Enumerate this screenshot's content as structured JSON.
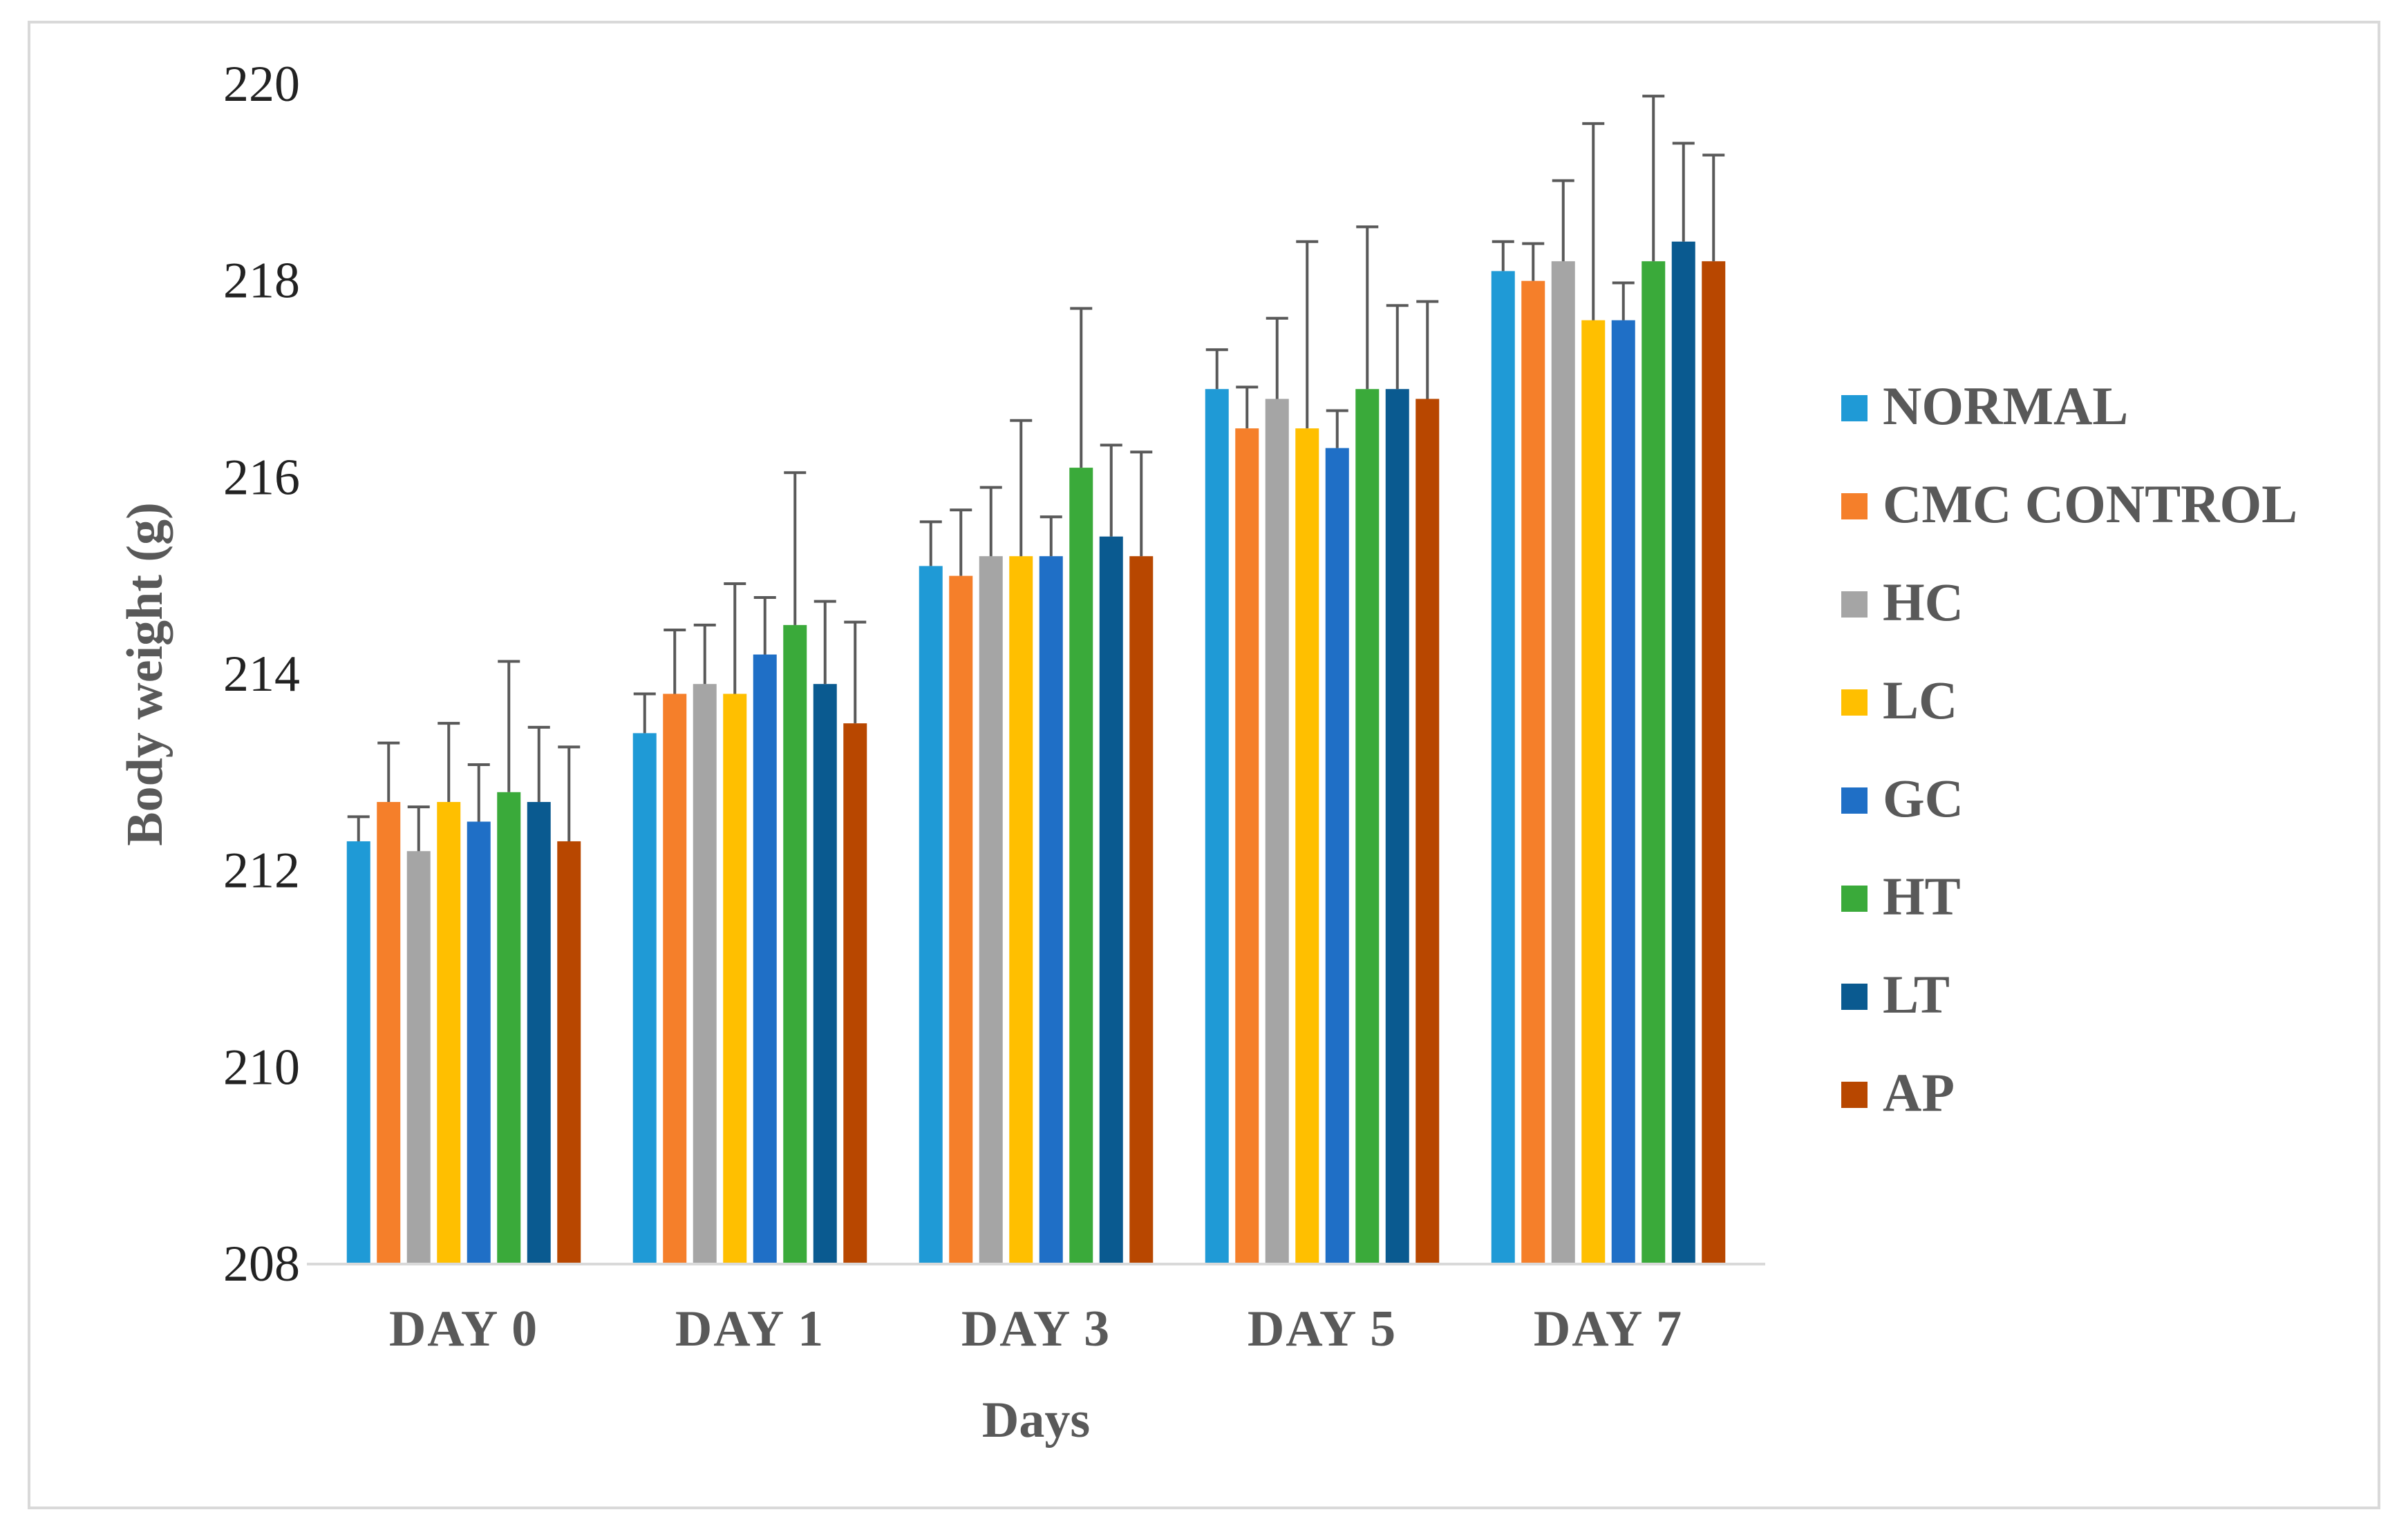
{
  "chart_data": {
    "type": "bar",
    "title": "",
    "xlabel": "Days",
    "ylabel": "Body weight (g)",
    "ylim": [
      208,
      220
    ],
    "yticks": [
      208,
      210,
      212,
      214,
      216,
      218,
      220
    ],
    "grid": false,
    "legend_position": "right",
    "categories": [
      "DAY 0",
      "DAY 1",
      "DAY 3",
      "DAY 5",
      "DAY 7"
    ],
    "series": [
      {
        "name": "NORMAL",
        "color": "#1f9ad6",
        "values": [
          212.3,
          213.4,
          215.1,
          216.9,
          218.1
        ],
        "errors": [
          0.25,
          0.4,
          0.45,
          0.4,
          0.3
        ]
      },
      {
        "name": "CMC CONTROL",
        "color": "#f57f2a",
        "values": [
          212.7,
          213.8,
          215.0,
          216.5,
          218.0
        ],
        "errors": [
          0.6,
          0.65,
          0.67,
          0.42,
          0.38
        ]
      },
      {
        "name": "HC",
        "color": "#a5a5a5",
        "values": [
          212.2,
          213.9,
          215.2,
          216.8,
          218.2
        ],
        "errors": [
          0.45,
          0.6,
          0.7,
          0.82,
          0.82
        ]
      },
      {
        "name": "LC",
        "color": "#ffbf00",
        "values": [
          212.7,
          213.8,
          215.2,
          216.5,
          217.6
        ],
        "errors": [
          0.8,
          1.12,
          1.38,
          1.9,
          2.0
        ]
      },
      {
        "name": "GC",
        "color": "#1f6fc6",
        "values": [
          212.5,
          214.2,
          215.2,
          216.3,
          217.6
        ],
        "errors": [
          0.58,
          0.58,
          0.4,
          0.38,
          0.38
        ]
      },
      {
        "name": "HT",
        "color": "#3aaa3a",
        "values": [
          212.8,
          214.5,
          216.1,
          216.9,
          218.2
        ],
        "errors": [
          1.33,
          1.55,
          1.62,
          1.65,
          1.68
        ]
      },
      {
        "name": "LT",
        "color": "#0a5a90",
        "values": [
          212.7,
          213.9,
          215.4,
          216.9,
          218.4
        ],
        "errors": [
          0.76,
          0.84,
          0.93,
          0.85,
          1.0
        ]
      },
      {
        "name": "AP",
        "color": "#b84700",
        "values": [
          212.3,
          213.5,
          215.2,
          216.8,
          218.2
        ],
        "errors": [
          0.96,
          1.03,
          1.06,
          0.99,
          1.08
        ]
      }
    ]
  }
}
